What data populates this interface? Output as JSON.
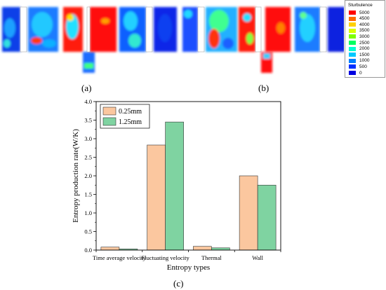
{
  "contour_panels": {
    "label_a": "(a)",
    "label_b": "(b)",
    "label_c": "(c)",
    "legend": {
      "title": "Sturbulence",
      "levels": [
        "5000",
        "4500",
        "4000",
        "3500",
        "3000",
        "2500",
        "2000",
        "1500",
        "1000",
        "500",
        "0"
      ],
      "colors": [
        "#ff0000",
        "#ff6a00",
        "#ffd000",
        "#d9ff00",
        "#7dff00",
        "#00ff60",
        "#00ffd0",
        "#00c8ff",
        "#0080ff",
        "#0030ff",
        "#0000e0"
      ]
    }
  },
  "chart_data": {
    "type": "bar",
    "categories": [
      "Time average velocity",
      "Fluctuating velocity",
      "Thermal",
      "Wall"
    ],
    "series": [
      {
        "name": "0.25mm",
        "color": "#fbc79f",
        "values": [
          0.08,
          2.83,
          0.1,
          2.0
        ]
      },
      {
        "name": "1.25mm",
        "color": "#7fd3a1",
        "values": [
          0.03,
          3.45,
          0.06,
          1.75
        ]
      }
    ],
    "xlabel": "Entropy types",
    "ylabel": "Entropy production rate(W/K)",
    "ylim": [
      0.0,
      4.0
    ],
    "yticks": [
      "0.0",
      "0.5",
      "1.0",
      "1.5",
      "2.0",
      "2.5",
      "3.0",
      "3.5",
      "4.0"
    ],
    "legend_position": "top-left",
    "grid": false
  }
}
